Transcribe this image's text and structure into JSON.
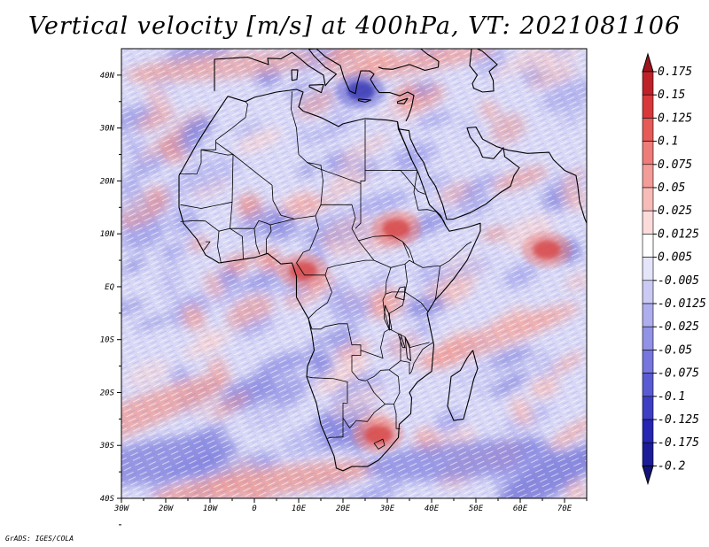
{
  "title": "Vertical velocity [m/s] at 400hPa, VT: 2021081106",
  "footer": "GrADS: IGES/COLA",
  "map": {
    "lon_range": [
      -30,
      75
    ],
    "lat_range": [
      -40,
      45
    ],
    "lon_labels": [
      "30W",
      "20W",
      "10W",
      "0",
      "10E",
      "20E",
      "30E",
      "40E",
      "50E",
      "60E",
      "70E"
    ],
    "lat_labels": [
      "40N",
      "30N",
      "20N",
      "10N",
      "EQ",
      "10S",
      "20S",
      "30S",
      "40S"
    ]
  },
  "colorbar": {
    "labels": [
      "0.175",
      "0.15",
      "0.125",
      "0.1",
      "0.075",
      "0.05",
      "0.025",
      "0.0125",
      "0.005",
      "-0.005",
      "-0.0125",
      "-0.025",
      "-0.05",
      "-0.075",
      "-0.1",
      "-0.125",
      "-0.175",
      "-0.2"
    ],
    "colors": [
      "#a0141e",
      "#be2228",
      "#d8383a",
      "#e65a58",
      "#ee7c78",
      "#f49c98",
      "#f8bcb8",
      "#fcdcda",
      "#ffffff",
      "#e4e4fa",
      "#cacaf4",
      "#aeaeee",
      "#9292e6",
      "#7676de",
      "#5a5ad2",
      "#3e3ec4",
      "#2626b2",
      "#1c1c98",
      "#12127a"
    ]
  },
  "chart_data": {
    "type": "heatmap",
    "title": "Vertical velocity [m/s] at 400hPa, VT: 2021081106",
    "variable": "Vertical velocity",
    "units": "m/s",
    "level": "400hPa",
    "valid_time": "2021081106",
    "xlim": [
      -30,
      75
    ],
    "ylim": [
      -40,
      45
    ],
    "x_ticks": [
      "30W",
      "20W",
      "10W",
      "0",
      "10E",
      "20E",
      "30E",
      "40E",
      "50E",
      "60E",
      "70E"
    ],
    "y_ticks": [
      "40N",
      "30N",
      "20N",
      "10N",
      "EQ",
      "10S",
      "20S",
      "30S",
      "40S"
    ],
    "colorbar_levels": [
      0.175,
      0.15,
      0.125,
      0.1,
      0.075,
      0.05,
      0.025,
      0.0125,
      0.005,
      -0.005,
      -0.0125,
      -0.025,
      -0.05,
      -0.075,
      -0.1,
      -0.125,
      -0.175,
      -0.2
    ],
    "notable_features": [
      {
        "label": "strong upward motion",
        "lon": 66,
        "lat": 7
      },
      {
        "label": "strong upward motion",
        "lon": 32,
        "lat": 11
      },
      {
        "label": "strong upward motion",
        "lon": 11,
        "lat": 3
      },
      {
        "label": "strong downward motion",
        "lon": 24,
        "lat": 37
      },
      {
        "label": "strong upward motion",
        "lon": 28,
        "lat": -28
      }
    ]
  }
}
